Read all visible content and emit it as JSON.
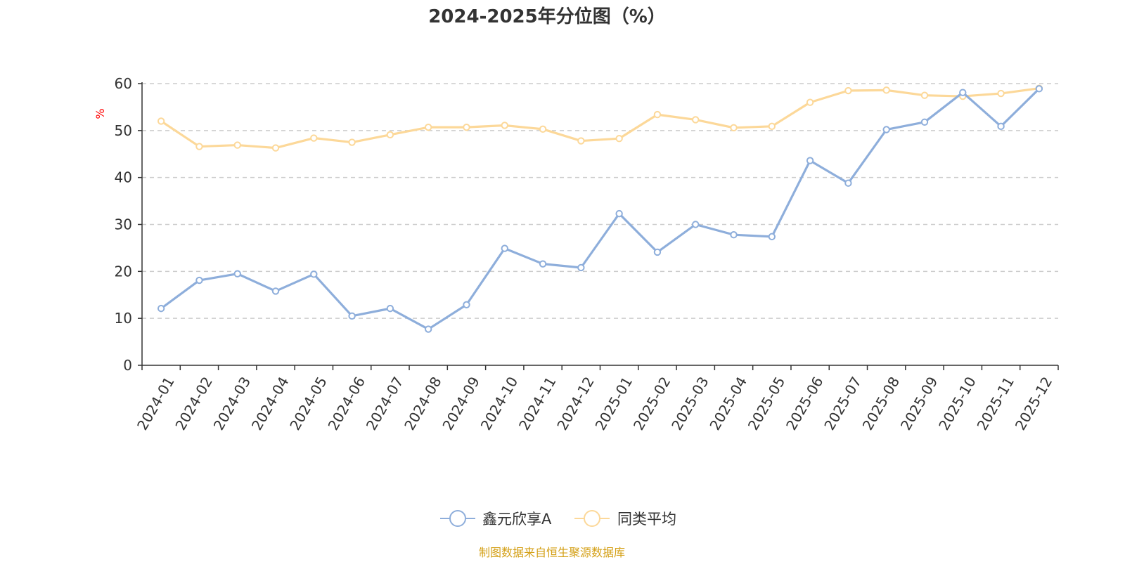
{
  "chart_data": {
    "type": "line",
    "title": "2024-2025年分位图（%）",
    "ylabel": "%",
    "xlabel": "",
    "ylim": [
      0,
      60
    ],
    "yticks": [
      0,
      10,
      20,
      30,
      40,
      50,
      60
    ],
    "grid": true,
    "legend_position": "bottom-center",
    "categories": [
      "2024-01",
      "2024-02",
      "2024-03",
      "2024-04",
      "2024-05",
      "2024-06",
      "2024-07",
      "2024-08",
      "2024-09",
      "2024-10",
      "2024-11",
      "2024-12",
      "2025-01",
      "2025-02",
      "2025-03",
      "2025-04",
      "2025-05",
      "2025-06",
      "2025-07",
      "2025-08",
      "2025-09",
      "2025-10",
      "2025-11",
      "2025-12"
    ],
    "series": [
      {
        "name": "鑫元欣享A",
        "color": "#8eaedb",
        "values": [
          12.1,
          18.1,
          19.5,
          15.8,
          19.4,
          10.5,
          12.1,
          7.7,
          12.9,
          24.9,
          21.6,
          20.8,
          32.3,
          24.1,
          30.0,
          27.8,
          27.4,
          43.6,
          38.8,
          50.2,
          51.8,
          58.1,
          50.9,
          58.9
        ]
      },
      {
        "name": "同类平均",
        "color": "#fcd899",
        "values": [
          52.0,
          46.6,
          46.9,
          46.3,
          48.4,
          47.5,
          49.1,
          50.7,
          50.7,
          51.1,
          50.3,
          47.8,
          48.3,
          53.4,
          52.3,
          50.6,
          50.9,
          56.0,
          58.5,
          58.6,
          57.5,
          57.3,
          57.9,
          59.0
        ]
      }
    ]
  },
  "colors": {
    "axis": "#333333",
    "grid": "#cccccc",
    "unit": "#ff0000",
    "source": "#d4a017"
  },
  "source_note": "制图数据来自恒生聚源数据库"
}
